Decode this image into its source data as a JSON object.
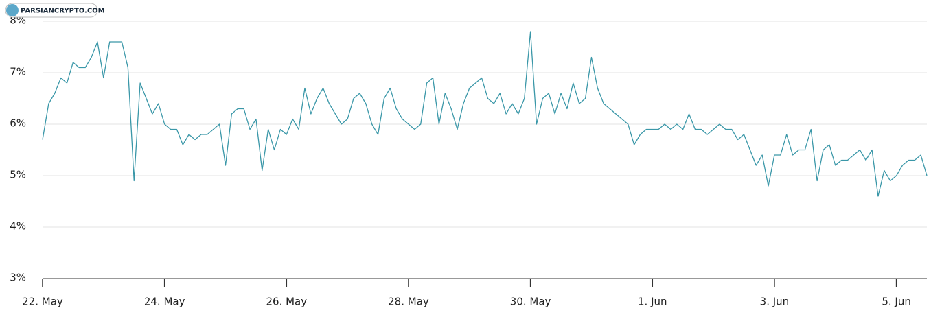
{
  "chart_data": {
    "type": "line",
    "watermark": "PARSIANCRYPTO.COM",
    "x": [
      0,
      0.1,
      0.2,
      0.3,
      0.4,
      0.5,
      0.6,
      0.7,
      0.8,
      0.9,
      1,
      1.1,
      1.2,
      1.3,
      1.4,
      1.5,
      1.6,
      1.7,
      1.8,
      1.9,
      2,
      2.1,
      2.2,
      2.3,
      2.4,
      2.5,
      2.6,
      2.7,
      2.8,
      2.9,
      3,
      3.1,
      3.2,
      3.3,
      3.4,
      3.5,
      3.6,
      3.7,
      3.8,
      3.9,
      4,
      4.1,
      4.2,
      4.3,
      4.4,
      4.5,
      4.6,
      4.7,
      4.8,
      4.9,
      5,
      5.1,
      5.2,
      5.3,
      5.4,
      5.5,
      5.6,
      5.7,
      5.8,
      5.9,
      6,
      6.1,
      6.2,
      6.3,
      6.4,
      6.5,
      6.6,
      6.7,
      6.8,
      6.9,
      7,
      7.1,
      7.2,
      7.3,
      7.4,
      7.5,
      7.6,
      7.7,
      7.8,
      7.9,
      8,
      8.1,
      8.2,
      8.3,
      8.4,
      8.5,
      8.6,
      8.7,
      8.8,
      8.9,
      9,
      9.1,
      9.2,
      9.3,
      9.4,
      9.5,
      9.6,
      9.7,
      9.8,
      9.9,
      10,
      10.1,
      10.2,
      10.3,
      10.4,
      10.5,
      10.6,
      10.7,
      10.8,
      10.9,
      11,
      11.1,
      11.2,
      11.3,
      11.4,
      11.5,
      11.6,
      11.7,
      11.8,
      11.9,
      12,
      12.1,
      12.2,
      12.3,
      12.4,
      12.5,
      12.6,
      12.7,
      12.8,
      12.9,
      13,
      13.1,
      13.2,
      13.3,
      13.4,
      13.5,
      13.6,
      13.7,
      13.8,
      13.9,
      14,
      14.1,
      14.2,
      14.3,
      14.4,
      14.5
    ],
    "series": [
      {
        "color": "#3a97a8",
        "values": [
          5.7,
          6.4,
          6.6,
          6.9,
          6.8,
          7.2,
          7.1,
          7.1,
          7.3,
          7.6,
          6.9,
          7.6,
          7.6,
          7.6,
          7.1,
          4.9,
          6.8,
          6.5,
          6.2,
          6.4,
          6.0,
          5.9,
          5.9,
          5.6,
          5.8,
          5.7,
          5.8,
          5.8,
          5.9,
          6.0,
          5.2,
          6.2,
          6.3,
          6.3,
          5.9,
          6.1,
          5.1,
          5.9,
          5.5,
          5.9,
          5.8,
          6.1,
          5.9,
          6.7,
          6.2,
          6.5,
          6.7,
          6.4,
          6.2,
          6.0,
          6.1,
          6.5,
          6.6,
          6.4,
          6.0,
          5.8,
          6.5,
          6.7,
          6.3,
          6.1,
          6.0,
          5.9,
          6.0,
          6.8,
          6.9,
          6.0,
          6.6,
          6.3,
          5.9,
          6.4,
          6.7,
          6.8,
          6.9,
          6.5,
          6.4,
          6.6,
          6.2,
          6.4,
          6.2,
          6.5,
          7.8,
          6.0,
          6.5,
          6.6,
          6.2,
          6.6,
          6.3,
          6.8,
          6.4,
          6.5,
          7.3,
          6.7,
          6.4,
          6.3,
          6.2,
          6.1,
          6.0,
          5.6,
          5.8,
          5.9,
          5.9,
          5.9,
          6.0,
          5.9,
          6.0,
          5.9,
          6.2,
          5.9,
          5.9,
          5.8,
          5.9,
          6.0,
          5.9,
          5.9,
          5.7,
          5.8,
          5.5,
          5.2,
          5.4,
          4.8,
          5.4,
          5.4,
          5.8,
          5.4,
          5.5,
          5.5,
          5.9,
          4.9,
          5.5,
          5.6,
          5.2,
          5.3,
          5.3,
          5.4,
          5.5,
          5.3,
          5.5,
          4.6,
          5.1,
          4.9,
          5.0,
          5.2,
          5.3,
          5.3,
          5.4,
          5.0
        ]
      }
    ],
    "xlim": [
      0,
      14.5
    ],
    "xticks": [
      {
        "value": 0,
        "label": "22. May"
      },
      {
        "value": 2,
        "label": "24. May"
      },
      {
        "value": 4,
        "label": "26. May"
      },
      {
        "value": 6,
        "label": "28. May"
      },
      {
        "value": 8,
        "label": "30. May"
      },
      {
        "value": 10,
        "label": "1. Jun"
      },
      {
        "value": 12,
        "label": "3. Jun"
      },
      {
        "value": 14,
        "label": "5. Jun"
      }
    ],
    "ylim": [
      3,
      8
    ],
    "yticks": [
      {
        "value": 3,
        "label": "3%"
      },
      {
        "value": 4,
        "label": "4%"
      },
      {
        "value": 5,
        "label": "5%"
      },
      {
        "value": 6,
        "label": "6%"
      },
      {
        "value": 7,
        "label": "7%"
      },
      {
        "value": 8,
        "label": "8%"
      }
    ],
    "grid": true
  }
}
